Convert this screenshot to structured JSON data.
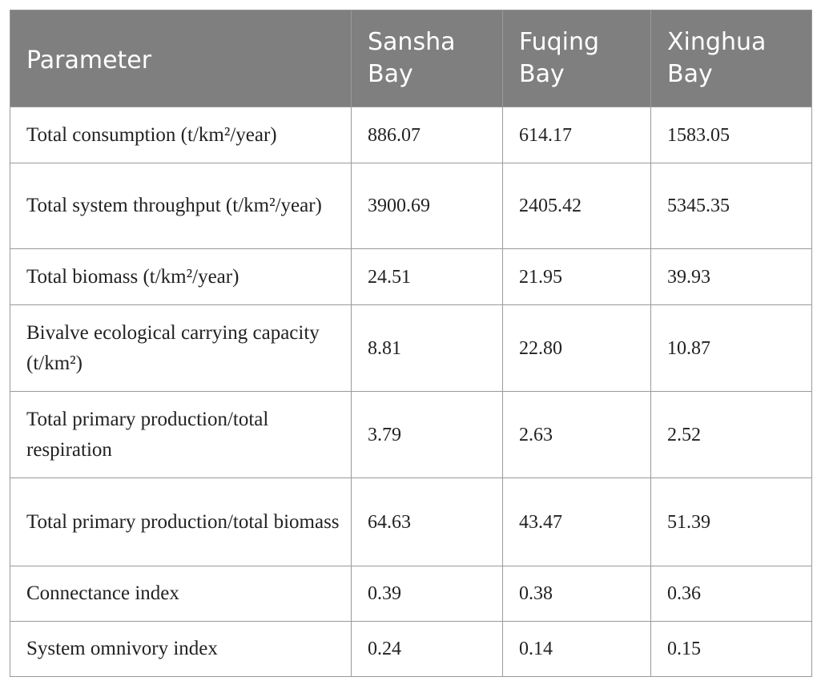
{
  "table": {
    "header": [
      "Parameter",
      "Sansha Bay",
      "Fuqing Bay",
      "Xinghua Bay"
    ],
    "rows": [
      [
        "Total consumption (t/km²/year)",
        "886.07",
        "614.17",
        "1583.05"
      ],
      [
        "Total system throughput (t/km²/year)",
        "3900.69",
        "2405.42",
        "5345.35"
      ],
      [
        "Total biomass (t/km²/year)",
        "24.51",
        "21.95",
        "39.93"
      ],
      [
        "Bivalve ecological carrying capacity (t/km²)",
        "8.81",
        "22.80",
        "10.87"
      ],
      [
        "Total primary production/total respiration",
        "3.79",
        "2.63",
        "2.52"
      ],
      [
        "Total primary production/total biomass",
        "64.63",
        "43.47",
        "51.39"
      ],
      [
        "Connectance index",
        "0.39",
        "0.38",
        "0.36"
      ],
      [
        "System omnivory index",
        "0.24",
        "0.14",
        "0.15"
      ]
    ]
  }
}
